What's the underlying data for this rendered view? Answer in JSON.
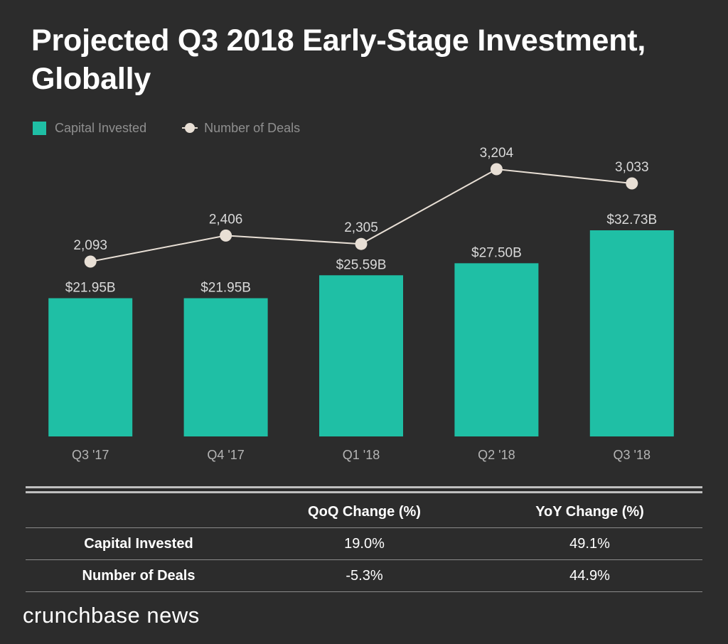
{
  "title": "Projected Q3 2018 Early-Stage Investment, Globally",
  "legend": {
    "bar_label": "Capital Invested",
    "line_label": "Number of Deals"
  },
  "colors": {
    "bar": "#1fbfa5",
    "line": "#e8dfd5",
    "background": "#2c2c2c"
  },
  "chart_data": {
    "type": "bar",
    "title": "Projected Q3 2018 Early-Stage Investment, Globally",
    "categories": [
      "Q3 '17",
      "Q4 '17",
      "Q1 '18",
      "Q2 '18",
      "Q3 '18"
    ],
    "series": [
      {
        "name": "Capital Invested",
        "type": "bar",
        "values": [
          21.95,
          21.95,
          25.59,
          27.5,
          32.73
        ],
        "labels": [
          "$21.95B",
          "$21.95B",
          "$25.59B",
          "$27.50B",
          "$32.73B"
        ]
      },
      {
        "name": "Number of Deals",
        "type": "line",
        "values": [
          2093,
          2406,
          2305,
          3204,
          3033
        ],
        "labels": [
          "2,093",
          "2,406",
          "2,305",
          "3,204",
          "3,033"
        ]
      }
    ],
    "xlabel": "",
    "ylabel": "",
    "ylim": [
      0,
      35
    ],
    "grid": false,
    "legend": "top-left"
  },
  "table": {
    "headers": [
      "",
      "QoQ Change (%)",
      "YoY Change (%)"
    ],
    "rows": [
      {
        "label": "Capital Invested",
        "qoq": "19.0%",
        "yoy": "49.1%"
      },
      {
        "label": "Number of Deals",
        "qoq": "-5.3%",
        "yoy": "44.9%"
      }
    ]
  },
  "brand": "crunchbase news"
}
